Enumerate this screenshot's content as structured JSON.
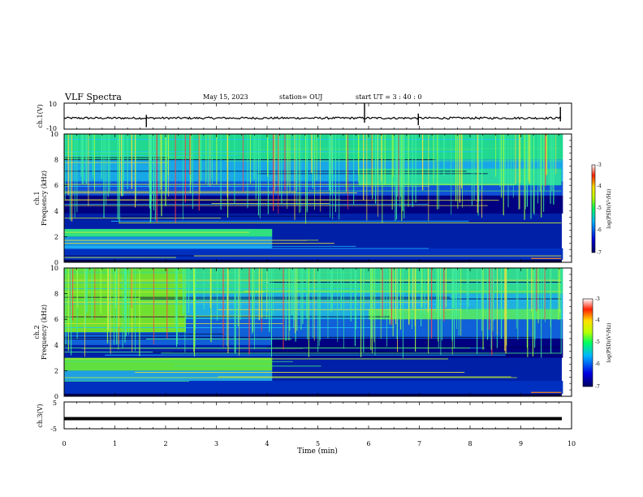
{
  "header": {
    "title": "VLF Spectra",
    "date": "May 15, 2023",
    "station": "station= OUJ",
    "start": "start  UT =   3  : 40 : 0"
  },
  "chart_data": [
    {
      "type": "line",
      "panel": "ch1-waveform",
      "ylabel": "ch.1(V)",
      "ylim": [
        -10,
        10
      ],
      "yticks": [
        "10",
        "-10"
      ],
      "baseline": -1.5,
      "spikes": [
        {
          "t": 1.62,
          "low": -8.5,
          "high": 1.0
        },
        {
          "t": 5.92,
          "low": -5.0,
          "high": 10.0
        },
        {
          "t": 9.78,
          "low": -4.0,
          "high": 7.0
        },
        {
          "t": 6.98,
          "low": -7.0,
          "high": 2.0
        }
      ]
    },
    {
      "type": "heatmap",
      "panel": "ch1-spectrogram",
      "ylabel": "ch.1\nFrequency (kHz)",
      "ylim": [
        0,
        10
      ],
      "yticks": [
        "0",
        "2",
        "4",
        "6",
        "8",
        "10"
      ],
      "colorbar": {
        "label": "log(PSD)(V²/Hz)",
        "range": [
          -7,
          -3
        ],
        "ticks": [
          "-3",
          "-4",
          "-5",
          "-6",
          "-7"
        ]
      }
    },
    {
      "type": "heatmap",
      "panel": "ch2-spectrogram",
      "ylabel": "ch.2\nFrequency (kHz)",
      "ylim": [
        0,
        10
      ],
      "yticks": [
        "0",
        "2",
        "4",
        "6",
        "8",
        "10"
      ],
      "colorbar": {
        "label": "log(PSD)(V²/Hz)",
        "range": [
          -7,
          -3
        ],
        "ticks": [
          "-3",
          "-4",
          "-5",
          "-6",
          "-7"
        ]
      }
    },
    {
      "type": "line",
      "panel": "ch3-waveform",
      "ylabel": "ch.3(V)",
      "ylim": [
        -5,
        5
      ],
      "yticks": [
        "5",
        "-5"
      ],
      "baseline": -1.2
    }
  ],
  "xaxis": {
    "label": "Time (min)",
    "xlim": [
      0,
      10
    ],
    "ticks": [
      "0",
      "1",
      "2",
      "3",
      "4",
      "5",
      "6",
      "7",
      "8",
      "9",
      "10"
    ]
  }
}
